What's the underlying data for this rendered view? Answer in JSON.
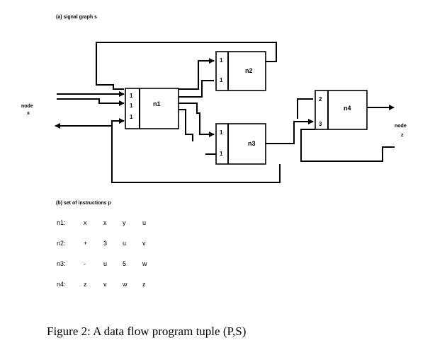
{
  "part_a": {
    "heading": "(a)  signal graph s",
    "node_x": {
      "word": "node",
      "name": "x"
    },
    "node_z": {
      "word": "node",
      "name": "z"
    },
    "nodes": [
      {
        "name": "n1",
        "ports": [
          "1",
          "1",
          "1"
        ]
      },
      {
        "name": "n2",
        "ports": [
          "1",
          "1"
        ]
      },
      {
        "name": "n3",
        "ports": [
          "1",
          "1"
        ]
      },
      {
        "name": "n4",
        "ports": [
          "2",
          "3"
        ]
      }
    ]
  },
  "part_b": {
    "heading": "(b)  set of instructions  p",
    "instructions": [
      {
        "label": "n1:",
        "fields": [
          "x",
          "x",
          "y",
          "u"
        ]
      },
      {
        "label": "n2:",
        "fields": [
          "+",
          "3",
          "u",
          "v"
        ]
      },
      {
        "label": "n3:",
        "fields": [
          "-",
          "u",
          "5",
          "w"
        ]
      },
      {
        "label": "n4:",
        "fields": [
          "z",
          "v",
          "w",
          "z"
        ]
      }
    ]
  },
  "caption": "Figure 2:  A data flow program tuple (P,S)"
}
